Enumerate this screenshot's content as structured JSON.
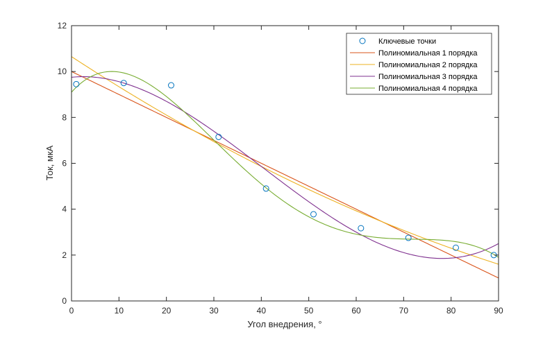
{
  "chart_data": {
    "type": "scatter",
    "title": "",
    "xlabel": "Угол внедрения, °",
    "ylabel": "Ток, мкА",
    "xlim": [
      0,
      90
    ],
    "ylim": [
      0,
      12
    ],
    "xticks": [
      0,
      10,
      20,
      30,
      40,
      50,
      60,
      70,
      80,
      90
    ],
    "yticks": [
      0,
      2,
      4,
      6,
      8,
      10,
      12
    ],
    "grid": false,
    "legend_position": "top-right",
    "points": {
      "name": "Ключевые точки",
      "color": "#0072BD",
      "x": [
        1,
        11,
        21,
        31,
        41,
        51,
        61,
        71,
        81,
        89
      ],
      "y": [
        9.45,
        9.5,
        9.4,
        7.15,
        4.9,
        3.78,
        3.17,
        2.75,
        2.32,
        2.0
      ]
    },
    "fits": [
      {
        "name": "Полиномиальная 1 порядка",
        "color": "#D95319",
        "order": 1,
        "x": [
          0,
          90
        ],
        "y": [
          10.0,
          1.0
        ]
      },
      {
        "name": "Полиномиальная 2 порядка",
        "color": "#EDB120",
        "order": 2,
        "x": [
          0,
          45,
          90
        ],
        "y": [
          10.65,
          5.35,
          1.6
        ]
      },
      {
        "name": "Полиномиальная 3 порядка",
        "color": "#7E2F8E",
        "order": 3,
        "x": [
          0,
          20,
          60,
          90
        ],
        "y": [
          9.75,
          8.7,
          3.0,
          2.5
        ]
      },
      {
        "name": "Полиномиальная 4 порядка",
        "color": "#77AC30",
        "order": 4,
        "x": [
          0,
          9,
          40,
          70,
          90
        ],
        "y": [
          9.1,
          10.0,
          5.1,
          2.7,
          1.9
        ]
      }
    ]
  }
}
